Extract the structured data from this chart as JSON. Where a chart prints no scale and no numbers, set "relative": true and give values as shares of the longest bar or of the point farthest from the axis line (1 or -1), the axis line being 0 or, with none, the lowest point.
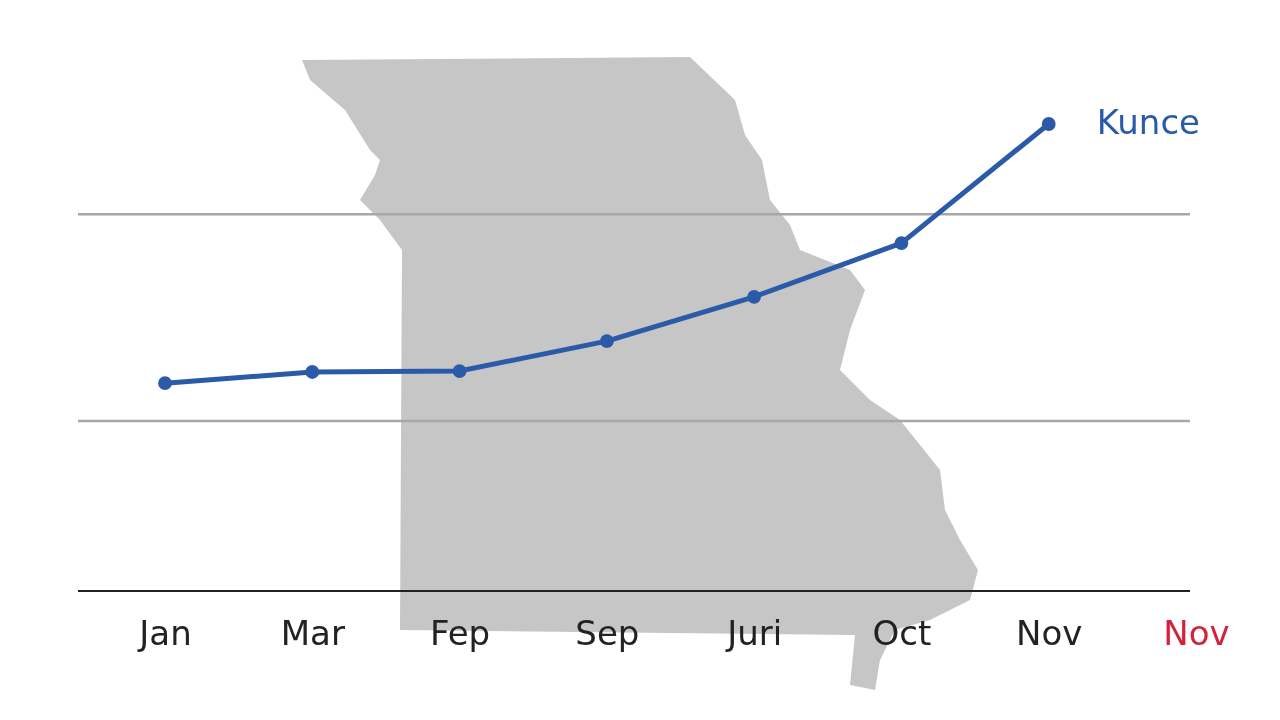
{
  "chart_data": {
    "type": "line",
    "relative": true,
    "categories": [
      "Jan",
      "Mar",
      "Fep",
      "Sep",
      "Juri",
      "Oct",
      "Nov",
      "Nov"
    ],
    "series": [
      {
        "name": "Kunce",
        "color": "#2b5ba8",
        "values": [
          0.445,
          0.469,
          0.471,
          0.535,
          0.63,
          0.745,
          1,
          null
        ]
      }
    ],
    "ref_lines": [
      {
        "axis": "y",
        "value": 0.807,
        "color": "#a8a8a8"
      },
      {
        "axis": "y",
        "value": 0.364,
        "color": "#a8a8a8"
      }
    ],
    "marker": "circle",
    "line_style": "solid",
    "legend": false
  }
}
